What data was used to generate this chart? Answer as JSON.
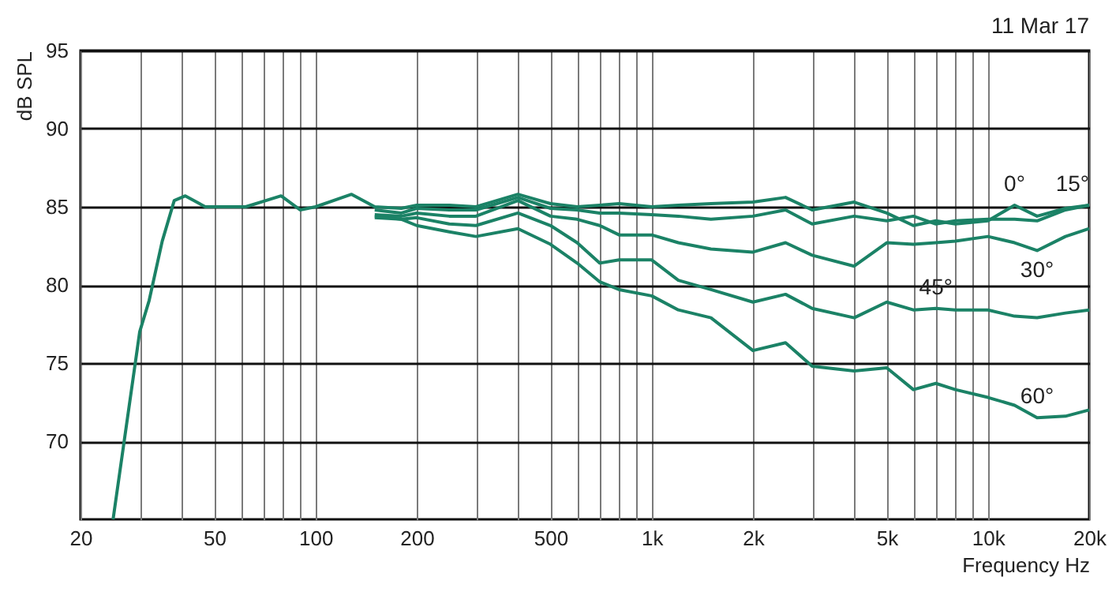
{
  "chart_data": {
    "type": "line",
    "xlabel": "Frequency Hz",
    "ylabel": "dB SPL",
    "log": "x",
    "grid": true,
    "legend": false,
    "line_style": "solid",
    "marker": "none",
    "xlim": [
      20,
      20000
    ],
    "ylim": [
      65,
      95
    ],
    "xticks": [
      20,
      {
        "value": 30,
        "label": null
      },
      {
        "value": 40,
        "label": null
      },
      50,
      {
        "value": 60,
        "label": null
      },
      {
        "value": 70,
        "label": null
      },
      {
        "value": 80,
        "label": null
      },
      {
        "value": 90,
        "label": null
      },
      100,
      200,
      {
        "value": 300,
        "label": null
      },
      {
        "value": 400,
        "label": null
      },
      500,
      {
        "value": 600,
        "label": null
      },
      {
        "value": 700,
        "label": null
      },
      {
        "value": 800,
        "label": null
      },
      {
        "value": 900,
        "label": null
      },
      {
        "value": 1000,
        "label": "1k"
      },
      {
        "value": 2000,
        "label": "2k"
      },
      {
        "value": 3000,
        "label": null
      },
      {
        "value": 4000,
        "label": null
      },
      {
        "value": 5000,
        "label": "5k"
      },
      {
        "value": 6000,
        "label": null
      },
      {
        "value": 7000,
        "label": null
      },
      {
        "value": 8000,
        "label": null
      },
      {
        "value": 9000,
        "label": null
      },
      {
        "value": 10000,
        "label": "10k"
      },
      {
        "value": 20000,
        "label": "20k"
      }
    ],
    "yticks": [
      70,
      75,
      80,
      85,
      90,
      95
    ],
    "series": [
      {
        "color": "#1b8266",
        "x": [
          25,
          30,
          32,
          35,
          38,
          41,
          47,
          62,
          79,
          90,
          100,
          128,
          150,
          180,
          200,
          250,
          300,
          400,
          500,
          600,
          700,
          800,
          1000,
          1200,
          1500,
          2000,
          2500,
          3000,
          4000,
          5000,
          6000,
          7000,
          8000,
          10000,
          12000,
          14000,
          17000,
          20000
        ],
        "values": [
          65,
          77,
          79,
          82.8,
          85.4,
          85.7,
          85,
          85,
          85.7,
          84.8,
          85,
          85.8,
          85.0,
          84.9,
          85.1,
          85.1,
          85.0,
          85.8,
          85.2,
          85.0,
          85.1,
          85.2,
          85.0,
          85.1,
          85.2,
          85.3,
          85.6,
          84.8,
          85.3,
          84.6,
          83.8,
          84.1,
          83.9,
          84.1,
          85.1,
          84.4,
          84.9,
          85.1
        ]
      },
      {
        "color": "#1b8266",
        "x": [
          150,
          180,
          200,
          250,
          300,
          400,
          500,
          600,
          700,
          800,
          1000,
          1200,
          1500,
          2000,
          2500,
          3000,
          4000,
          5000,
          6000,
          7000,
          8000,
          10000,
          12000,
          14000,
          17000,
          20000
        ],
        "values": [
          84.8,
          84.6,
          84.9,
          84.8,
          84.8,
          85.6,
          84.9,
          84.8,
          84.6,
          84.6,
          84.5,
          84.4,
          84.2,
          84.4,
          84.8,
          83.9,
          84.4,
          84.1,
          84.4,
          83.9,
          84.1,
          84.2,
          84.2,
          84.1,
          84.8,
          85.1
        ]
      },
      {
        "color": "#1b8266",
        "x": [
          150,
          180,
          200,
          250,
          300,
          400,
          500,
          600,
          700,
          800,
          1000,
          1200,
          1500,
          2000,
          2500,
          3000,
          4000,
          5000,
          6000,
          7000,
          8000,
          10000,
          12000,
          14000,
          17000,
          20000
        ],
        "values": [
          84.5,
          84.4,
          84.6,
          84.4,
          84.4,
          85.4,
          84.4,
          84.2,
          83.8,
          83.2,
          83.2,
          82.7,
          82.3,
          82.1,
          82.7,
          81.9,
          81.2,
          82.7,
          82.6,
          82.7,
          82.8,
          83.1,
          82.7,
          82.2,
          83.1,
          83.6
        ]
      },
      {
        "color": "#1b8266",
        "x": [
          150,
          180,
          200,
          250,
          300,
          400,
          500,
          600,
          700,
          800,
          1000,
          1200,
          1500,
          2000,
          2500,
          3000,
          4000,
          5000,
          6000,
          7000,
          8000,
          10000,
          12000,
          14000,
          17000,
          20000
        ],
        "values": [
          84.4,
          84.2,
          84.3,
          83.9,
          83.8,
          84.6,
          83.8,
          82.7,
          81.4,
          81.6,
          81.6,
          80.3,
          79.7,
          78.9,
          79.4,
          78.5,
          77.9,
          78.9,
          78.4,
          78.5,
          78.4,
          78.4,
          78.0,
          77.9,
          78.2,
          78.4
        ]
      },
      {
        "color": "#1b8266",
        "x": [
          150,
          180,
          200,
          250,
          300,
          400,
          500,
          600,
          700,
          800,
          1000,
          1200,
          1500,
          2000,
          2500,
          3000,
          4000,
          5000,
          6000,
          7000,
          8000,
          10000,
          12000,
          14000,
          17000,
          20000
        ],
        "values": [
          84.3,
          84.2,
          83.8,
          83.4,
          83.1,
          83.6,
          82.6,
          81.4,
          80.2,
          79.7,
          79.3,
          78.4,
          77.9,
          75.8,
          76.3,
          74.8,
          74.5,
          74.7,
          73.3,
          73.7,
          73.3,
          72.8,
          72.3,
          71.5,
          71.6,
          72.0
        ]
      }
    ],
    "annotations": [
      "11 Mar 17",
      {
        "text": "0°",
        "x": 12000,
        "y": 85.1
      },
      {
        "text": "15°",
        "x": 20000,
        "y": 85.1
      },
      {
        "text": "30°",
        "x": 14000,
        "y": 82.2
      },
      {
        "text": "45°",
        "x": 7000,
        "y": 78.5
      },
      {
        "text": "60°",
        "x": 14000,
        "y": 71.5
      }
    ]
  }
}
